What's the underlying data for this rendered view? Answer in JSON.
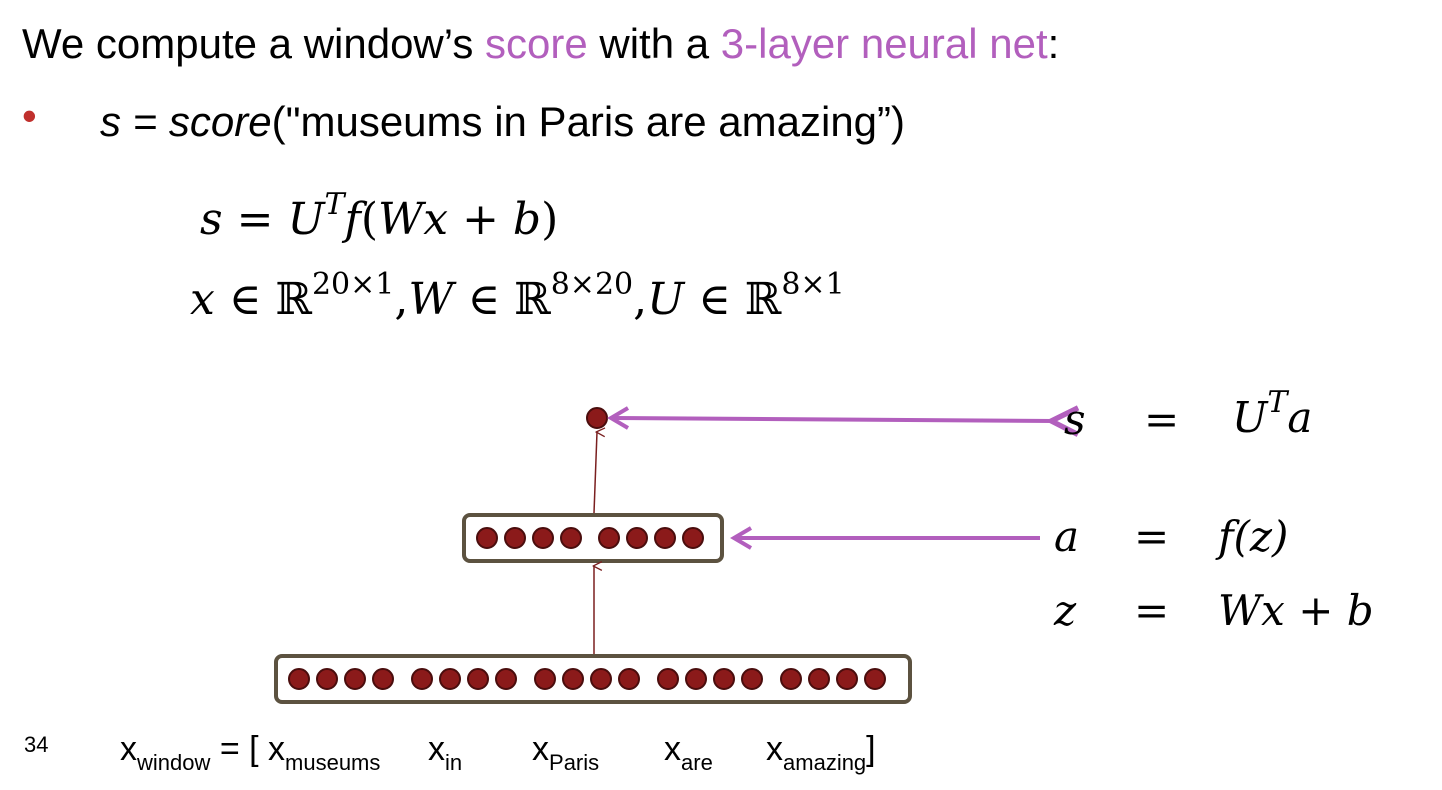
{
  "heading": {
    "prefix": "We compute a window’s ",
    "score_word": "score",
    "middle": " with a ",
    "net_phrase": "3-layer neural net",
    "suffix": ":"
  },
  "bullet": {
    "dot": "•",
    "s_var": "s",
    "equals": " = ",
    "func": "score",
    "args": "(\"museums in Paris are amazing”)"
  },
  "equations": {
    "eq1": {
      "lhs": "s",
      "eq": " = ",
      "U": "U",
      "sup_T": "T",
      "f": "f",
      "open": "(",
      "W": "W",
      "x": "x",
      "plus": " + ",
      "b": "b",
      "close": ")"
    },
    "eq2": {
      "x": "x",
      "in1": " ∈ ",
      "R1": "ℝ",
      "dim1": "20×1",
      "comma1": ",",
      "W": "W",
      "in2": " ∈ ",
      "R2": "ℝ",
      "dim2": "8×20",
      "comma2": ",",
      "U": "U",
      "in3": " ∈ ",
      "R3": "ℝ",
      "dim3": "8×1"
    }
  },
  "diagram_eqs": {
    "s_row": {
      "lhs": "s",
      "eq": "=",
      "rhs_U": "U",
      "rhs_T": "T",
      "rhs_a": "a"
    },
    "a_row": {
      "lhs": "a",
      "eq": "=",
      "rhs": "f(z)"
    },
    "z_row": {
      "lhs": "z",
      "eq": "=",
      "rhs": "Wx + b"
    }
  },
  "network": {
    "hidden_groups": [
      4,
      4
    ],
    "input_groups": [
      4,
      4,
      4,
      4,
      4
    ]
  },
  "slide_number": "34",
  "window_line": {
    "lhs_base": "x",
    "lhs_sub": "window",
    "eq_open": " = [ ",
    "items": [
      {
        "base": "x",
        "sub": "museums"
      },
      {
        "base": "x",
        "sub": "in"
      },
      {
        "base": "x",
        "sub": "Paris"
      },
      {
        "base": "x",
        "sub": "are"
      },
      {
        "base": "x",
        "sub": "amazing"
      }
    ],
    "close": "]"
  },
  "colors": {
    "accent": "#b25fbd",
    "bullet": "#c0302d",
    "neuron": "#8b1a1a",
    "box": "#5c5240",
    "arrow_purple": "#b25fbd",
    "arrow_dark": "#7a1f1f"
  }
}
